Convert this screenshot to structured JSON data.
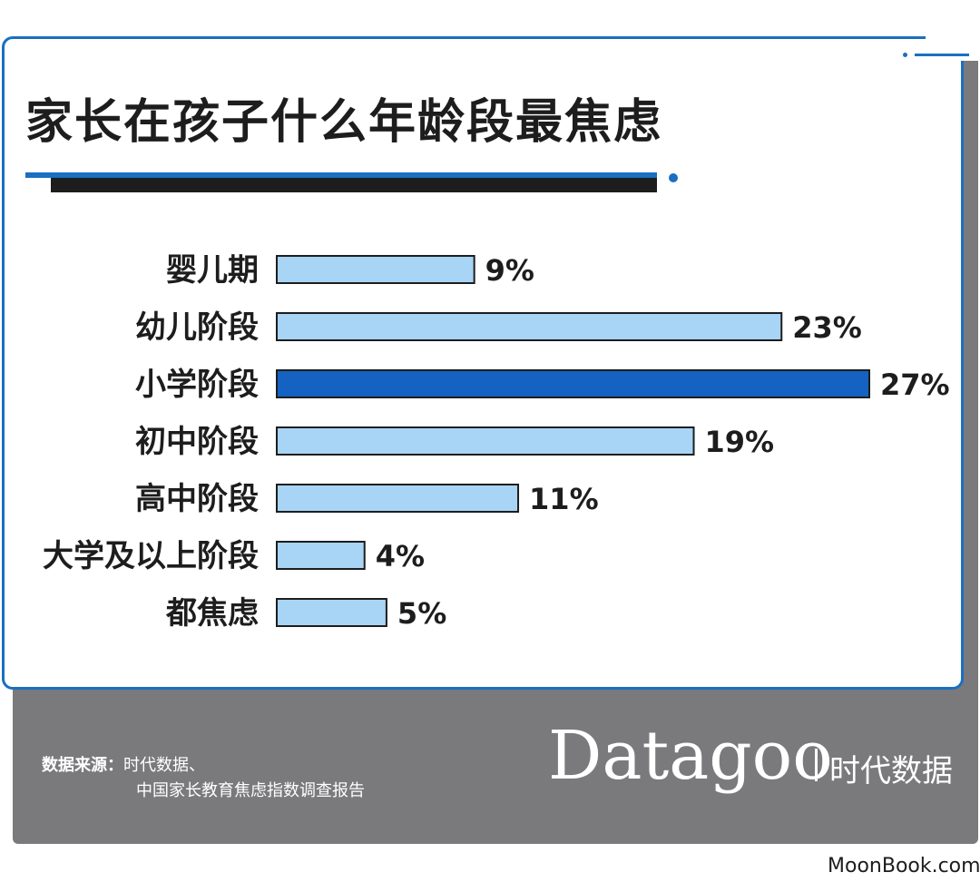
{
  "chart_data": {
    "type": "bar",
    "orientation": "horizontal",
    "title": "家长在孩子什么年龄段最焦虑",
    "categories": [
      "婴儿期",
      "幼儿阶段",
      "小学阶段",
      "初中阶段",
      "高中阶段",
      "大学及以上阶段",
      "都焦虑"
    ],
    "values": [
      9,
      23,
      27,
      19,
      11,
      4,
      5
    ],
    "value_labels": [
      "9%",
      "23%",
      "27%",
      "19%",
      "11%",
      "4%",
      "5%"
    ],
    "unit": "%",
    "highlight_index": 2,
    "xlim": [
      0,
      27
    ],
    "grid": false,
    "colors": {
      "bar": "#a8d4f5",
      "highlight": "#1462c1",
      "outline": "#1d1d1d"
    }
  },
  "footer": {
    "source_label": "数据来源：",
    "source_line1": "时代数据、",
    "source_line2": "中国家长教育焦虑指数调查报告",
    "brand_name": "Datagoo",
    "brand_cn": "时代数据"
  },
  "watermark": "MoonBook.com"
}
